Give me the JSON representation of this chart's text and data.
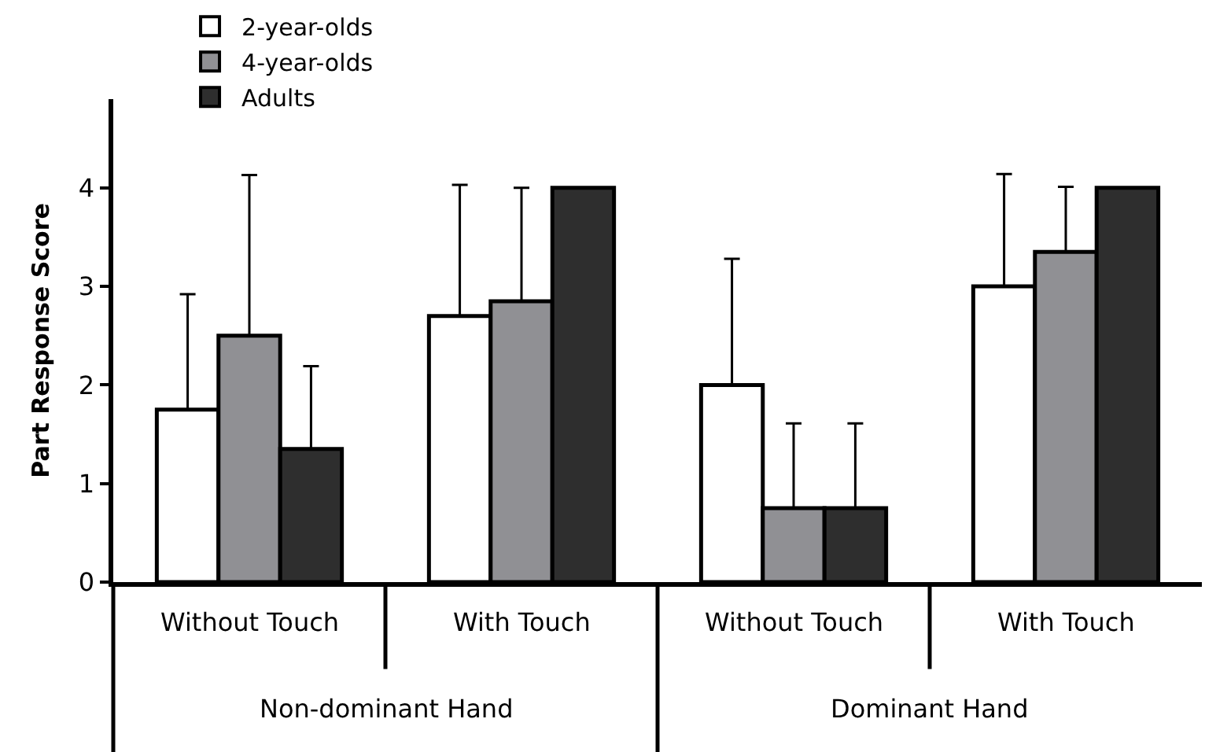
{
  "chart_data": {
    "type": "bar",
    "ylabel": "Part Response Score",
    "categories": [
      "Without Touch",
      "With Touch",
      "Without Touch",
      "With Touch"
    ],
    "annotations": [
      "Non-dominant Hand",
      "Dominant Hand"
    ],
    "series": [
      {
        "name": "2-year-olds",
        "color": "#ffffff",
        "values": [
          1.75,
          2.7,
          2.0,
          3.0
        ],
        "errors": [
          [
            1.75,
            2.92
          ],
          [
            2.7,
            4.03
          ],
          [
            2.0,
            3.28
          ],
          [
            3.0,
            4.14
          ]
        ]
      },
      {
        "name": "4-year-olds",
        "color": "#909094",
        "values": [
          2.5,
          2.85,
          0.75,
          3.35
        ],
        "errors": [
          [
            2.5,
            4.13
          ],
          [
            2.85,
            4.0
          ],
          [
            0.75,
            1.61
          ],
          [
            3.35,
            4.01
          ]
        ]
      },
      {
        "name": "Adults",
        "color": "#2e2e2e",
        "values": [
          1.35,
          4.0,
          0.75,
          4.0
        ],
        "errors": [
          [
            1.35,
            2.19
          ],
          null,
          [
            0.75,
            1.61
          ],
          null
        ]
      }
    ],
    "ylim": [
      0,
      4.9
    ],
    "yticks": [
      0,
      1,
      2,
      3,
      4
    ],
    "grid": false,
    "legend": "top left"
  }
}
